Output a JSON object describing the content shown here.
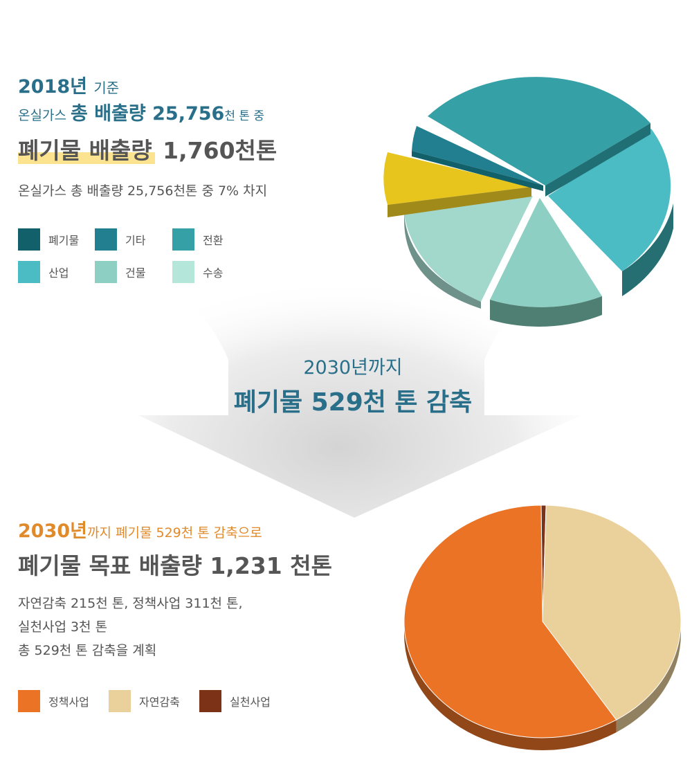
{
  "top": {
    "year_line": {
      "year": "2018년",
      "suffix": "기준"
    },
    "total_line": {
      "prefix": "온실가스",
      "main": "총 배출량 25,756",
      "suffix": "천 톤 중"
    },
    "waste_line": {
      "highlight": "폐기물 배출량",
      "value": "1,760천톤"
    },
    "share_text": "온실가스 총 배출량 25,756천톤 중 7% 차지",
    "legend": [
      {
        "label": "폐기물",
        "color": "#12606a"
      },
      {
        "label": "기타",
        "color": "#227f8f"
      },
      {
        "label": "전환",
        "color": "#36a0a7"
      },
      {
        "label": "산업",
        "color": "#4bbcc3"
      },
      {
        "label": "건물",
        "color": "#8dcfc2"
      },
      {
        "label": "수송",
        "color": "#b5e6da"
      }
    ]
  },
  "middle": {
    "year": "2030년까지",
    "main": "폐기물 529천 톤 감축"
  },
  "bottom": {
    "year_line": {
      "year": "2030년",
      "suffix": "까지 폐기물 529천 톤 감축으로"
    },
    "target_line": "폐기물 목표 배출량 1,231 천톤",
    "desc_lines": [
      "자연감축 215천 톤, 정책사업 311천 톤,",
      "실천사업 3천 톤",
      "총 529천 톤 감축을 계획"
    ],
    "legend": [
      {
        "label": "정책사업",
        "color": "#ea7326"
      },
      {
        "label": "자연감축",
        "color": "#ead09b"
      },
      {
        "label": "실천사업",
        "color": "#7b3217"
      }
    ]
  },
  "chart_data": [
    {
      "type": "pie",
      "series": [
        {
          "name": "폐기물",
          "value": 7,
          "color": "#12606a"
        },
        {
          "name": "기타",
          "value": 5,
          "color": "#227f8f"
        },
        {
          "name": "전환",
          "value": 30,
          "color": "#36a0a7"
        },
        {
          "name": "산업",
          "value": 25,
          "color": "#4bbcc3"
        },
        {
          "name": "건물",
          "value": 12,
          "color": "#8dcfc2"
        },
        {
          "name": "수송",
          "value": 15,
          "color": "#a2d7cc"
        }
      ],
      "highlight_slice_color": "#e8c51d"
    },
    {
      "type": "pie",
      "series": [
        {
          "name": "정책사업",
          "value": 311,
          "color": "#ea7326"
        },
        {
          "name": "자연감축",
          "value": 215,
          "color": "#ead09b"
        },
        {
          "name": "실천사업",
          "value": 3,
          "color": "#7b3217"
        }
      ]
    }
  ]
}
